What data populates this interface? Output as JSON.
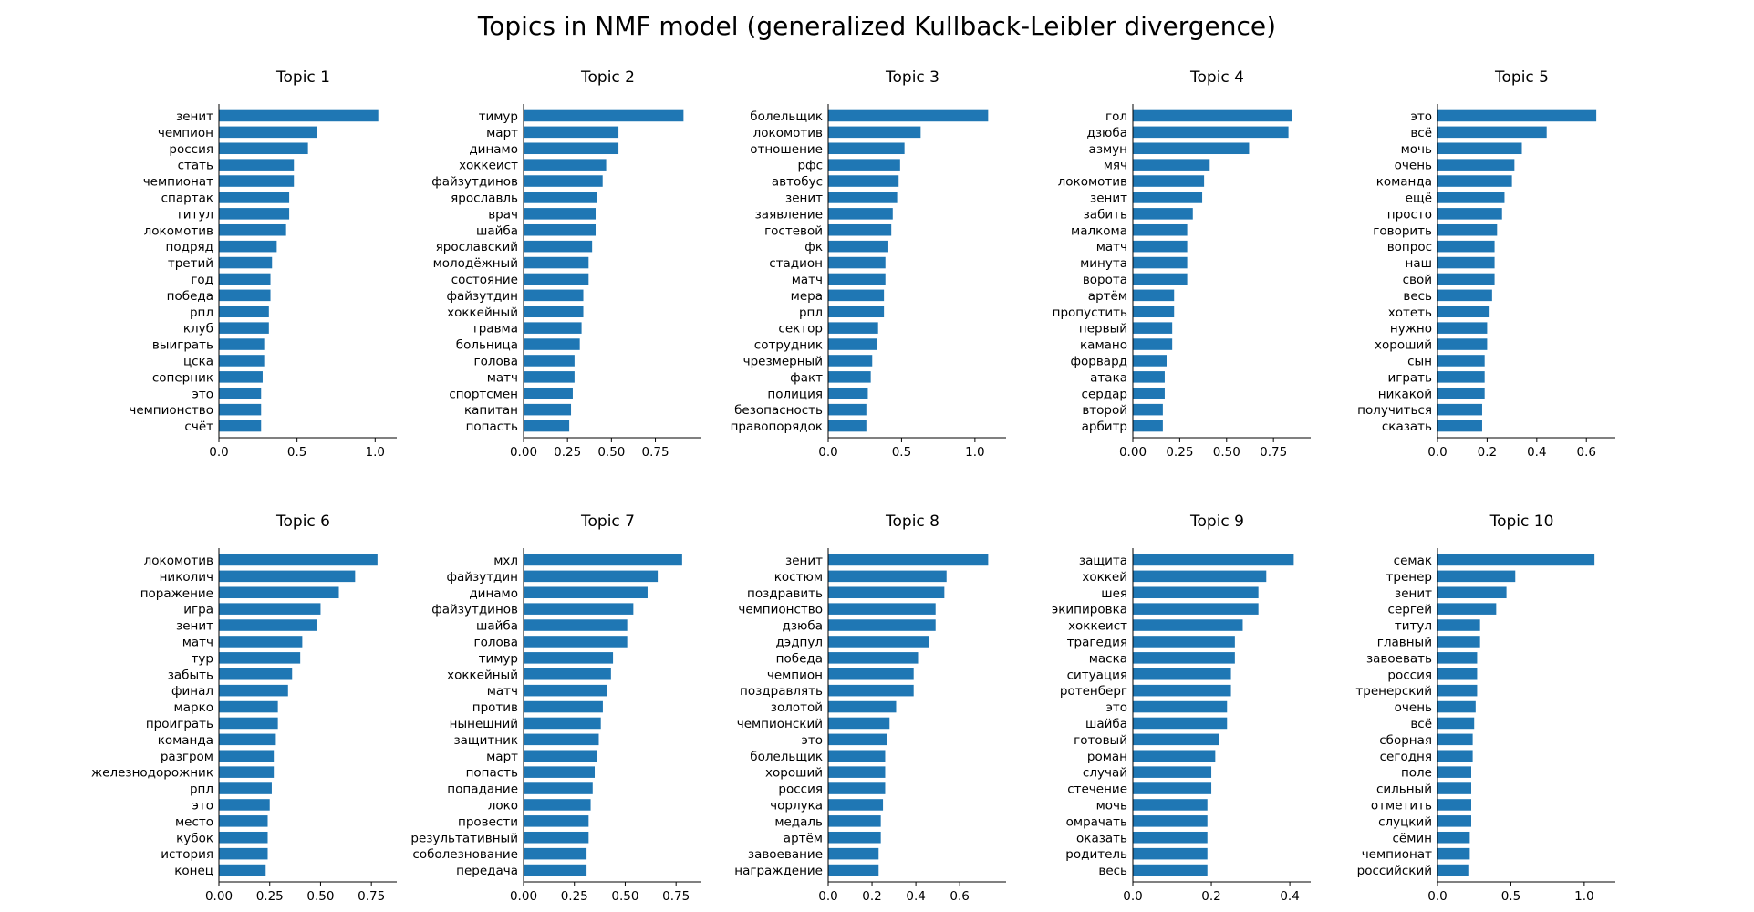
{
  "title": "Topics in NMF model (generalized Kullback-Leibler divergence)",
  "bar_color": "#1f77b4",
  "chart_data": [
    {
      "type": "bar",
      "orientation": "horizontal",
      "title": "Topic 1",
      "xlim": [
        0,
        1.08
      ],
      "xticks": [
        0.0,
        0.5,
        1.0
      ],
      "tick_labels": [
        "0.0",
        "0.5",
        "1.0"
      ],
      "categories": [
        "зенит",
        "чемпион",
        "россия",
        "стать",
        "чемпионат",
        "спартак",
        "титул",
        "локомотив",
        "подряд",
        "третий",
        "год",
        "победа",
        "рпл",
        "клуб",
        "выиграть",
        "цска",
        "соперник",
        "это",
        "чемпионство",
        "счёт"
      ],
      "values": [
        1.02,
        0.63,
        0.57,
        0.48,
        0.48,
        0.45,
        0.45,
        0.43,
        0.37,
        0.34,
        0.33,
        0.33,
        0.32,
        0.32,
        0.29,
        0.29,
        0.28,
        0.27,
        0.27,
        0.27
      ]
    },
    {
      "type": "bar",
      "orientation": "horizontal",
      "title": "Topic 2",
      "xlim": [
        0,
        0.96
      ],
      "xticks": [
        0.0,
        0.25,
        0.5,
        0.75
      ],
      "tick_labels": [
        "0.00",
        "0.25",
        "0.50",
        "0.75"
      ],
      "categories": [
        "тимур",
        "март",
        "динамо",
        "хоккеист",
        "файзутдинов",
        "ярославль",
        "врач",
        "шайба",
        "ярославский",
        "молодёжный",
        "состояние",
        "файзутдин",
        "хоккейный",
        "травма",
        "больница",
        "голова",
        "матч",
        "спортсмен",
        "капитан",
        "попасть"
      ],
      "values": [
        0.91,
        0.54,
        0.54,
        0.47,
        0.45,
        0.42,
        0.41,
        0.41,
        0.39,
        0.37,
        0.37,
        0.34,
        0.34,
        0.33,
        0.32,
        0.29,
        0.29,
        0.28,
        0.27,
        0.26
      ]
    },
    {
      "type": "bar",
      "orientation": "horizontal",
      "title": "Topic 3",
      "xlim": [
        0,
        1.15
      ],
      "xticks": [
        0.0,
        0.5,
        1.0
      ],
      "tick_labels": [
        "0.0",
        "0.5",
        "1.0"
      ],
      "categories": [
        "болельщик",
        "локомотив",
        "отношение",
        "рфс",
        "автобус",
        "зенит",
        "заявление",
        "гостевой",
        "фк",
        "стадион",
        "матч",
        "мера",
        "рпл",
        "сектор",
        "сотрудник",
        "чрезмерный",
        "факт",
        "полиция",
        "безопасность",
        "правопорядок"
      ],
      "values": [
        1.09,
        0.63,
        0.52,
        0.49,
        0.48,
        0.47,
        0.44,
        0.43,
        0.41,
        0.39,
        0.39,
        0.38,
        0.38,
        0.34,
        0.33,
        0.3,
        0.29,
        0.27,
        0.26,
        0.26
      ]
    },
    {
      "type": "bar",
      "orientation": "horizontal",
      "title": "Topic 4",
      "xlim": [
        0,
        0.9
      ],
      "xticks": [
        0.0,
        0.25,
        0.5,
        0.75
      ],
      "tick_labels": [
        "0.00",
        "0.25",
        "0.50",
        "0.75"
      ],
      "categories": [
        "гол",
        "дзюба",
        "азмун",
        "мяч",
        "локомотив",
        "зенит",
        "забить",
        "малкома",
        "матч",
        "минута",
        "ворота",
        "артём",
        "пропустить",
        "первый",
        "камано",
        "форвард",
        "атака",
        "сердар",
        "второй",
        "арбитр"
      ],
      "values": [
        0.85,
        0.83,
        0.62,
        0.41,
        0.38,
        0.37,
        0.32,
        0.29,
        0.29,
        0.29,
        0.29,
        0.22,
        0.22,
        0.21,
        0.21,
        0.18,
        0.17,
        0.17,
        0.16,
        0.16
      ]
    },
    {
      "type": "bar",
      "orientation": "horizontal",
      "title": "Topic 5",
      "xlim": [
        0,
        0.68
      ],
      "xticks": [
        0.0,
        0.2,
        0.4,
        0.6
      ],
      "tick_labels": [
        "0.0",
        "0.2",
        "0.4",
        "0.6"
      ],
      "categories": [
        "это",
        "всё",
        "мочь",
        "очень",
        "команда",
        "ещё",
        "просто",
        "говорить",
        "вопрос",
        "наш",
        "свой",
        "весь",
        "хотеть",
        "нужно",
        "хороший",
        "сын",
        "играть",
        "никакой",
        "получиться",
        "сказать"
      ],
      "values": [
        0.64,
        0.44,
        0.34,
        0.31,
        0.3,
        0.27,
        0.26,
        0.24,
        0.23,
        0.23,
        0.23,
        0.22,
        0.21,
        0.2,
        0.2,
        0.19,
        0.19,
        0.19,
        0.18,
        0.18
      ]
    },
    {
      "type": "bar",
      "orientation": "horizontal",
      "title": "Topic 6",
      "xlim": [
        0,
        0.83
      ],
      "xticks": [
        0.0,
        0.25,
        0.5,
        0.75
      ],
      "tick_labels": [
        "0.00",
        "0.25",
        "0.50",
        "0.75"
      ],
      "categories": [
        "локомотив",
        "николич",
        "поражение",
        "игра",
        "зенит",
        "матч",
        "тур",
        "забыть",
        "финал",
        "марко",
        "проиграть",
        "команда",
        "разгром",
        "железнодорожник",
        "рпл",
        "это",
        "место",
        "кубок",
        "история",
        "конец"
      ],
      "values": [
        0.78,
        0.67,
        0.59,
        0.5,
        0.48,
        0.41,
        0.4,
        0.36,
        0.34,
        0.29,
        0.29,
        0.28,
        0.27,
        0.27,
        0.26,
        0.25,
        0.24,
        0.24,
        0.24,
        0.23
      ]
    },
    {
      "type": "bar",
      "orientation": "horizontal",
      "title": "Topic 7",
      "xlim": [
        0,
        0.83
      ],
      "xticks": [
        0.0,
        0.25,
        0.5,
        0.75
      ],
      "tick_labels": [
        "0.00",
        "0.25",
        "0.50",
        "0.75"
      ],
      "categories": [
        "мхл",
        "файзутдин",
        "динамо",
        "файзутдинов",
        "шайба",
        "голова",
        "тимур",
        "хоккейный",
        "матч",
        "против",
        "нынешний",
        "защитник",
        "март",
        "попасть",
        "попадание",
        "локо",
        "провести",
        "результативный",
        "соболезнование",
        "передача"
      ],
      "values": [
        0.78,
        0.66,
        0.61,
        0.54,
        0.51,
        0.51,
        0.44,
        0.43,
        0.41,
        0.39,
        0.38,
        0.37,
        0.36,
        0.35,
        0.34,
        0.33,
        0.32,
        0.32,
        0.31,
        0.31
      ]
    },
    {
      "type": "bar",
      "orientation": "horizontal",
      "title": "Topic 8",
      "xlim": [
        0,
        0.77
      ],
      "xticks": [
        0.0,
        0.2,
        0.4,
        0.6
      ],
      "tick_labels": [
        "0.0",
        "0.2",
        "0.4",
        "0.6"
      ],
      "categories": [
        "зенит",
        "костюм",
        "поздравить",
        "чемпионство",
        "дзюба",
        "дэдпул",
        "победа",
        "чемпион",
        "поздравлять",
        "золотой",
        "чемпионский",
        "это",
        "болельщик",
        "хороший",
        "россия",
        "чорлука",
        "медаль",
        "артём",
        "завоевание",
        "награждение"
      ],
      "values": [
        0.73,
        0.54,
        0.53,
        0.49,
        0.49,
        0.46,
        0.41,
        0.39,
        0.39,
        0.31,
        0.28,
        0.27,
        0.26,
        0.26,
        0.26,
        0.25,
        0.24,
        0.24,
        0.23,
        0.23
      ]
    },
    {
      "type": "bar",
      "orientation": "horizontal",
      "title": "Topic 9",
      "xlim": [
        0,
        0.43
      ],
      "xticks": [
        0.0,
        0.2,
        0.4
      ],
      "tick_labels": [
        "0.0",
        "0.2",
        "0.4"
      ],
      "categories": [
        "защита",
        "хоккей",
        "шея",
        "экипировка",
        "хоккеист",
        "трагедия",
        "маска",
        "ситуация",
        "ротенберг",
        "это",
        "шайба",
        "готовый",
        "роман",
        "случай",
        "стечение",
        "мочь",
        "омрачать",
        "оказать",
        "родитель",
        "весь"
      ],
      "values": [
        0.41,
        0.34,
        0.32,
        0.32,
        0.28,
        0.26,
        0.26,
        0.25,
        0.25,
        0.24,
        0.24,
        0.22,
        0.21,
        0.2,
        0.2,
        0.19,
        0.19,
        0.19,
        0.19,
        0.19
      ]
    },
    {
      "type": "bar",
      "orientation": "horizontal",
      "title": "Topic 10",
      "xlim": [
        0,
        1.15
      ],
      "xticks": [
        0.0,
        0.5,
        1.0
      ],
      "tick_labels": [
        "0.0",
        "0.5",
        "1.0"
      ],
      "categories": [
        "семак",
        "тренер",
        "зенит",
        "сергей",
        "титул",
        "главный",
        "завоевать",
        "россия",
        "тренерский",
        "очень",
        "всё",
        "сборная",
        "сегодня",
        "поле",
        "сильный",
        "отметить",
        "слуцкий",
        "сёмин",
        "чемпионат",
        "российский"
      ],
      "values": [
        1.07,
        0.53,
        0.47,
        0.4,
        0.29,
        0.29,
        0.27,
        0.27,
        0.27,
        0.26,
        0.25,
        0.24,
        0.24,
        0.23,
        0.23,
        0.23,
        0.23,
        0.22,
        0.22,
        0.21
      ]
    }
  ]
}
